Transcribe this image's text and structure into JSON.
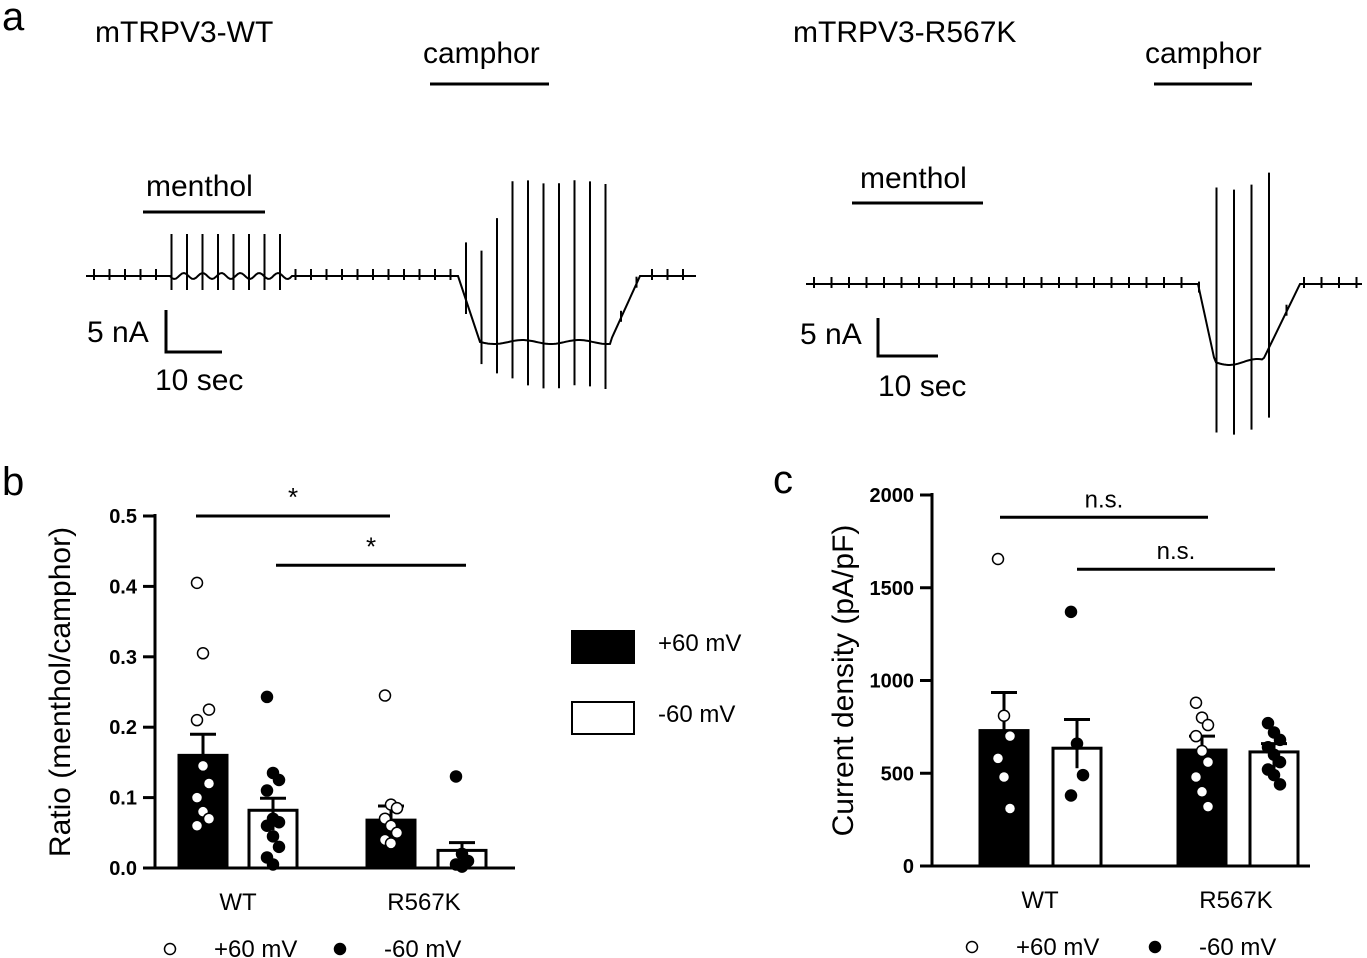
{
  "figure": {
    "panel_labels": {
      "a": "a",
      "b": "b",
      "c": "c"
    },
    "colors": {
      "ink": "#000000",
      "background": "#ffffff"
    }
  },
  "traces": {
    "wt": {
      "title": "mTRPV3-WT",
      "stim1": "menthol",
      "stim2": "camphor",
      "scale_current": "5 nA",
      "scale_time": "10 sec"
    },
    "mut": {
      "title": "mTRPV3-R567K",
      "stim1": "menthol",
      "stim2": "camphor",
      "scale_current": "5 nA",
      "scale_time": "10 sec"
    }
  },
  "chart_data": [
    {
      "id": "b",
      "type": "bar",
      "title": "",
      "xlabel": "",
      "ylabel": "Ratio (menthol/camphor)",
      "ylim": [
        0,
        0.5
      ],
      "yticks": [
        "0.0",
        "0.1",
        "0.2",
        "0.3",
        "0.4",
        "0.5"
      ],
      "categories": [
        "WT",
        "R567K"
      ],
      "series": [
        {
          "name": "+60 mV",
          "fill": "black",
          "values": [
            0.16,
            0.068
          ],
          "sem": [
            0.03,
            0.02
          ],
          "points": [
            [
              0.405,
              0.305,
              0.225,
              0.21,
              0.145,
              0.12,
              0.1,
              0.08,
              0.07,
              0.06
            ],
            [
              0.245,
              0.09,
              0.085,
              0.07,
              0.06,
              0.05,
              0.04,
              0.035
            ]
          ]
        },
        {
          "name": "-60 mV",
          "fill": "white",
          "values": [
            0.082,
            0.025
          ],
          "sem": [
            0.017,
            0.011
          ],
          "points": [
            [
              0.243,
              0.135,
              0.125,
              0.11,
              0.07,
              0.065,
              0.06,
              0.045,
              0.03,
              0.015,
              0.005
            ],
            [
              0.13,
              0.02,
              0.01,
              0.005,
              0.002
            ]
          ]
        }
      ],
      "significance": [
        {
          "label": "*",
          "from": "WT +60 mV",
          "to": "R567K +60 mV",
          "y": 0.5
        },
        {
          "label": "*",
          "from": "WT -60 mV",
          "to": "R567K -60 mV",
          "y": 0.43
        }
      ],
      "bar_legend": [
        "+60 mV",
        "-60 mV"
      ],
      "point_legend": [
        "+60 mV",
        "-60 mV"
      ],
      "point_legend_markers": [
        "○",
        "●"
      ]
    },
    {
      "id": "c",
      "type": "bar",
      "title": "",
      "xlabel": "",
      "ylabel": "Current density (pA/pF)",
      "ylim": [
        0,
        2000
      ],
      "yticks": [
        "0",
        "500",
        "1000",
        "1500",
        "2000"
      ],
      "categories": [
        "WT",
        "R567K"
      ],
      "series": [
        {
          "name": "+60 mV",
          "fill": "black",
          "values": [
            730,
            625
          ],
          "sem": [
            205,
            75
          ],
          "points": [
            [
              1655,
              810,
              700,
              580,
              480,
              310
            ],
            [
              880,
              800,
              760,
              700,
              620,
              560,
              480,
              400,
              320
            ]
          ]
        },
        {
          "name": "-60 mV",
          "fill": "white",
          "values": [
            635,
            615
          ],
          "sem": [
            155,
            45
          ],
          "points": [
            [
              1370,
              660,
              490,
              380
            ],
            [
              770,
              720,
              680,
              640,
              600,
              560,
              520,
              490,
              440
            ]
          ]
        }
      ],
      "significance": [
        {
          "label": "n.s.",
          "from": "WT +60 mV",
          "to": "R567K +60 mV",
          "y": 1880
        },
        {
          "label": "n.s.",
          "from": "WT -60 mV",
          "to": "R567K -60 mV",
          "y": 1600
        }
      ],
      "point_legend": [
        "+60 mV",
        "-60 mV"
      ],
      "point_legend_markers": [
        "○",
        "●"
      ]
    }
  ]
}
